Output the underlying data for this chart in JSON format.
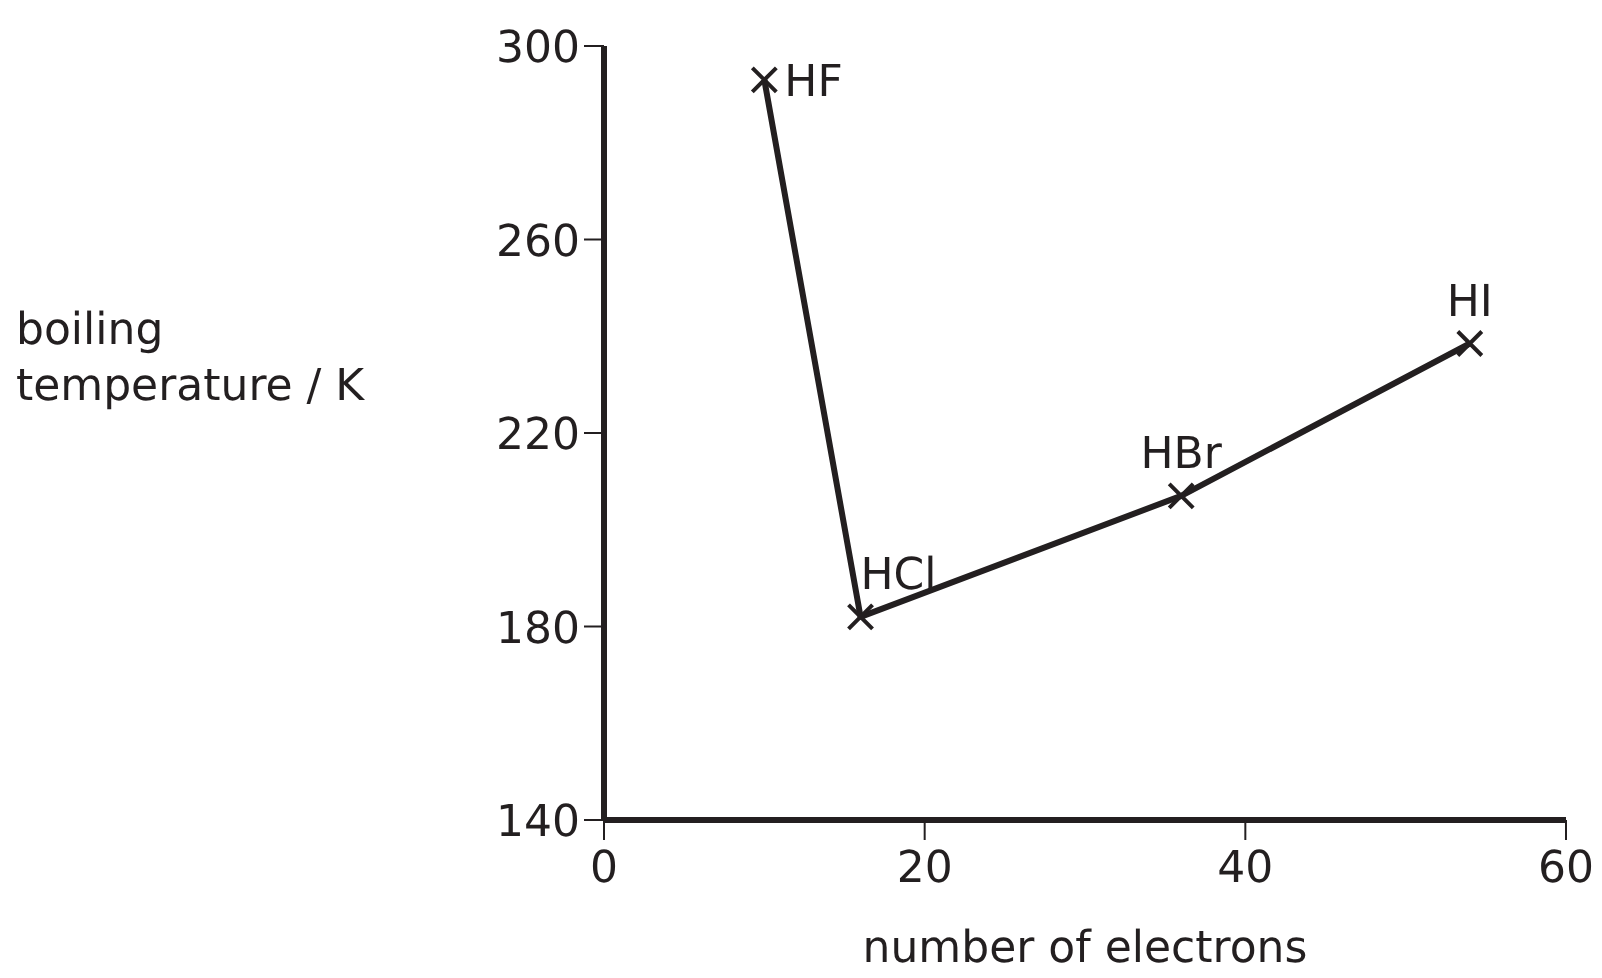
{
  "chart_data": {
    "type": "line",
    "xlabel": "number of electrons",
    "ylabel": "boiling temperature / K",
    "x": [
      10,
      16,
      36,
      54
    ],
    "values": [
      293,
      182,
      207,
      238.5
    ],
    "color": "#231f20",
    "marker": "cross",
    "line_style": "solid",
    "xlim": [
      0,
      60
    ],
    "xticks": [
      0,
      20,
      40,
      60
    ],
    "ylim": [
      140,
      300
    ],
    "yticks": [
      140,
      180,
      220,
      260,
      300
    ],
    "grid": false,
    "annotations": [
      {
        "text": "HF",
        "x": 10,
        "y": 293
      },
      {
        "text": "HCl",
        "x": 16,
        "y": 182
      },
      {
        "text": "HBr",
        "x": 36,
        "y": 207
      },
      {
        "text": "HI",
        "x": 54,
        "y": 238.5
      }
    ]
  }
}
